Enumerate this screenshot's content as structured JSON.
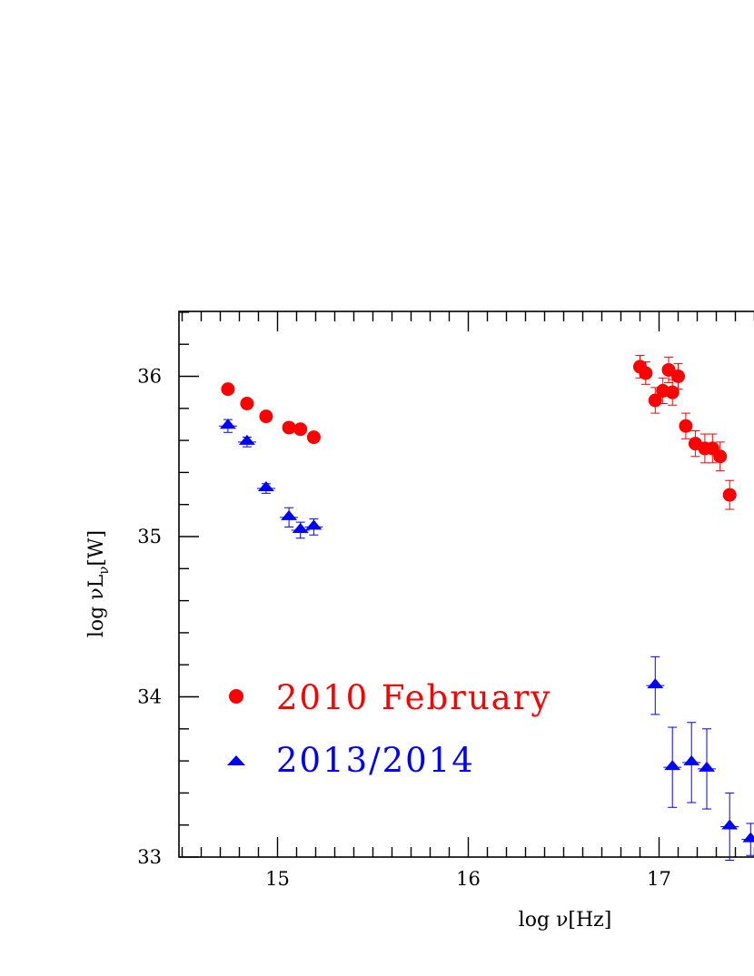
{
  "chart_data": {
    "type": "scatter",
    "xlabel": "log ν[Hz]",
    "ylabel_parts": {
      "prefix": "log νL",
      "sub": "ν",
      "suffix": "[W]"
    },
    "xlim": [
      14.5,
      17.5
    ],
    "ylim": [
      33,
      36.4
    ],
    "x_ticks": [
      15,
      16,
      17
    ],
    "y_ticks": [
      33,
      34,
      35,
      36
    ],
    "legend_position": "lower-left",
    "series": [
      {
        "name": "2010 February",
        "color": "#ff0000",
        "marker": "circle",
        "points": [
          {
            "x": 14.74,
            "y": 35.92,
            "err": 0.02
          },
          {
            "x": 14.84,
            "y": 35.83,
            "err": 0.02
          },
          {
            "x": 14.94,
            "y": 35.75,
            "err": 0.02
          },
          {
            "x": 15.06,
            "y": 35.68,
            "err": 0.02
          },
          {
            "x": 15.12,
            "y": 35.67,
            "err": 0.02
          },
          {
            "x": 15.19,
            "y": 35.62,
            "err": 0.02
          },
          {
            "x": 16.9,
            "y": 36.06,
            "err": 0.07
          },
          {
            "x": 16.93,
            "y": 36.02,
            "err": 0.07
          },
          {
            "x": 16.98,
            "y": 35.85,
            "err": 0.08
          },
          {
            "x": 17.02,
            "y": 35.91,
            "err": 0.08
          },
          {
            "x": 17.05,
            "y": 36.04,
            "err": 0.08
          },
          {
            "x": 17.07,
            "y": 35.9,
            "err": 0.08
          },
          {
            "x": 17.1,
            "y": 36.0,
            "err": 0.08
          },
          {
            "x": 17.14,
            "y": 35.69,
            "err": 0.08
          },
          {
            "x": 17.19,
            "y": 35.58,
            "err": 0.08
          },
          {
            "x": 17.24,
            "y": 35.55,
            "err": 0.09
          },
          {
            "x": 17.28,
            "y": 35.55,
            "err": 0.09
          },
          {
            "x": 17.32,
            "y": 35.5,
            "err": 0.09
          },
          {
            "x": 17.37,
            "y": 35.26,
            "err": 0.09
          }
        ]
      },
      {
        "name": "2013/2014",
        "color": "#0000ff",
        "marker": "triangle",
        "points": [
          {
            "x": 14.74,
            "y": 35.69,
            "err": 0.04
          },
          {
            "x": 14.84,
            "y": 35.59,
            "err": 0.03
          },
          {
            "x": 14.94,
            "y": 35.3,
            "err": 0.03
          },
          {
            "x": 15.06,
            "y": 35.12,
            "err": 0.06
          },
          {
            "x": 15.12,
            "y": 35.04,
            "err": 0.05
          },
          {
            "x": 15.19,
            "y": 35.06,
            "err": 0.05
          },
          {
            "x": 16.98,
            "y": 34.07,
            "err": 0.18
          },
          {
            "x": 17.07,
            "y": 33.56,
            "err": 0.25
          },
          {
            "x": 17.17,
            "y": 33.59,
            "err": 0.25
          },
          {
            "x": 17.25,
            "y": 33.55,
            "err": 0.25
          },
          {
            "x": 17.37,
            "y": 33.19,
            "err": 0.21
          },
          {
            "x": 17.48,
            "y": 33.11,
            "err": 0.1
          }
        ]
      }
    ]
  }
}
